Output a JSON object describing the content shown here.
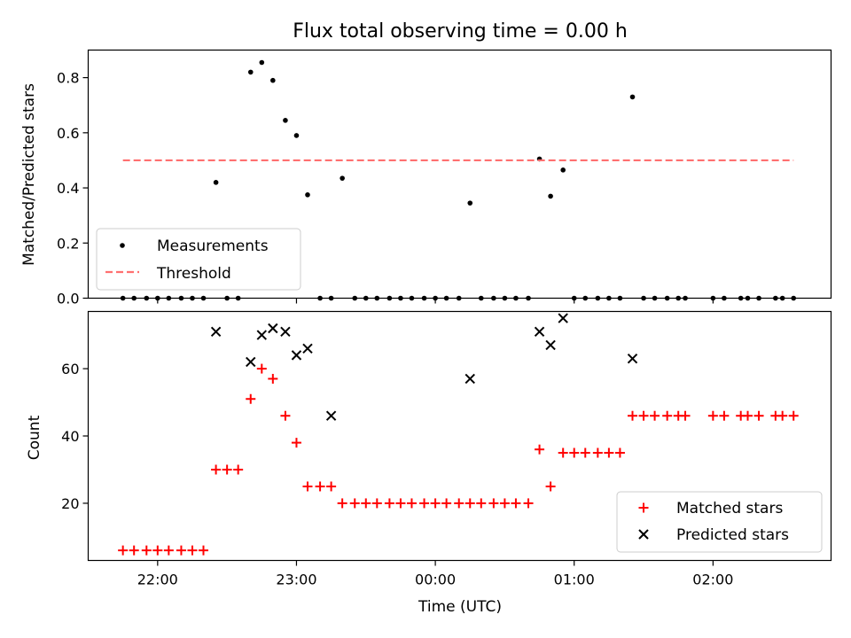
{
  "chart_data": {
    "title": "Flux total observing time = 0.00 h",
    "xlabel": "Time (UTC)",
    "x_unit": "UTC time, hours after 00:00 (negative = previous evening)",
    "x_ticks": [
      {
        "value": -2,
        "label": "22:00"
      },
      {
        "value": -1,
        "label": "23:00"
      },
      {
        "value": 0,
        "label": "00:00"
      },
      {
        "value": 1,
        "label": "01:00"
      },
      {
        "value": 2,
        "label": "02:00"
      }
    ],
    "xlim": [
      -2.5,
      2.85
    ],
    "panels": [
      {
        "type": "scatter",
        "ylabel": "Matched/Predicted stars",
        "ylim": [
          0,
          0.9
        ],
        "yticks": [
          0.0,
          0.2,
          0.4,
          0.6,
          0.8
        ],
        "ytick_labels": [
          "0.0",
          "0.2",
          "0.4",
          "0.6",
          "0.8"
        ],
        "legend_position": "lower-left",
        "series": [
          {
            "name": "Measurements",
            "kind": "scatter",
            "color": "#000000",
            "x": [
              -2.25,
              -2.17,
              -2.08,
              -2.0,
              -1.92,
              -1.83,
              -1.75,
              -1.67,
              -1.58,
              -1.5,
              -1.42,
              -1.33,
              -1.25,
              -1.17,
              -1.08,
              -1.0,
              -0.92,
              -0.83,
              -0.75,
              -0.67,
              -0.58,
              -0.5,
              -0.42,
              -0.33,
              -0.25,
              -0.17,
              -0.08,
              0.0,
              0.08,
              0.17,
              0.25,
              0.33,
              0.42,
              0.5,
              0.58,
              0.67,
              0.75,
              0.83,
              0.92,
              1.0,
              1.08,
              1.17,
              1.25,
              1.33,
              1.42,
              1.5,
              1.58,
              1.67,
              1.75,
              1.8,
              2.0,
              2.08,
              2.2,
              2.25,
              2.33,
              2.45,
              2.5,
              2.58
            ],
            "y": [
              0,
              0,
              0,
              0,
              0,
              0,
              0,
              0,
              0.42,
              0,
              0,
              0.82,
              0.855,
              0.79,
              0.645,
              0.59,
              0.375,
              0,
              0,
              0.435,
              0,
              0,
              0,
              0,
              0,
              0,
              0,
              0,
              0,
              0,
              0.345,
              0,
              0,
              0,
              0,
              0,
              0.505,
              0.37,
              0.465,
              0,
              0,
              0,
              0,
              0,
              0.73,
              0,
              0,
              0,
              0,
              0,
              0,
              0,
              0,
              0,
              0,
              0,
              0,
              0
            ]
          },
          {
            "name": "Threshold",
            "kind": "dashed-line",
            "color": "#ff7070",
            "x": [
              -2.25,
              2.58
            ],
            "y": [
              0.5,
              0.5
            ]
          }
        ]
      },
      {
        "type": "scatter",
        "ylabel": "Count",
        "ylim": [
          3,
          77
        ],
        "yticks": [
          20,
          40,
          60
        ],
        "ytick_labels": [
          "20",
          "40",
          "60"
        ],
        "legend_position": "lower-right",
        "series": [
          {
            "name": "Matched stars",
            "marker": "plus",
            "color": "#ff0000",
            "x": [
              -2.25,
              -2.17,
              -2.08,
              -2.0,
              -1.92,
              -1.83,
              -1.75,
              -1.67,
              -1.58,
              -1.5,
              -1.42,
              -1.33,
              -1.25,
              -1.17,
              -1.08,
              -1.0,
              -0.92,
              -0.83,
              -0.75,
              -0.67,
              -0.58,
              -0.5,
              -0.42,
              -0.33,
              -0.25,
              -0.17,
              -0.08,
              0.0,
              0.08,
              0.17,
              0.25,
              0.33,
              0.42,
              0.5,
              0.58,
              0.67,
              0.75,
              0.83,
              0.92,
              1.0,
              1.08,
              1.17,
              1.25,
              1.33,
              1.42,
              1.5,
              1.58,
              1.67,
              1.75,
              1.8,
              2.0,
              2.08,
              2.2,
              2.25,
              2.33,
              2.45,
              2.5,
              2.58
            ],
            "y": [
              6,
              6,
              6,
              6,
              6,
              6,
              6,
              6,
              30,
              30,
              30,
              51,
              60,
              57,
              46,
              38,
              25,
              25,
              25,
              20,
              20,
              20,
              20,
              20,
              20,
              20,
              20,
              20,
              20,
              20,
              20,
              20,
              20,
              20,
              20,
              20,
              36,
              25,
              35,
              35,
              35,
              35,
              35,
              35,
              46,
              46,
              46,
              46,
              46,
              46,
              46,
              46,
              46,
              46,
              46,
              46,
              46,
              46
            ]
          },
          {
            "name": "Predicted stars",
            "marker": "x",
            "color": "#000000",
            "x": [
              -1.58,
              -1.33,
              -1.25,
              -1.17,
              -1.08,
              -1.0,
              -0.92,
              -0.75,
              0.25,
              0.75,
              0.83,
              0.92,
              1.42
            ],
            "y": [
              71,
              62,
              70,
              72,
              71,
              64,
              66,
              46,
              57,
              71,
              67,
              75,
              63
            ]
          }
        ]
      }
    ]
  }
}
